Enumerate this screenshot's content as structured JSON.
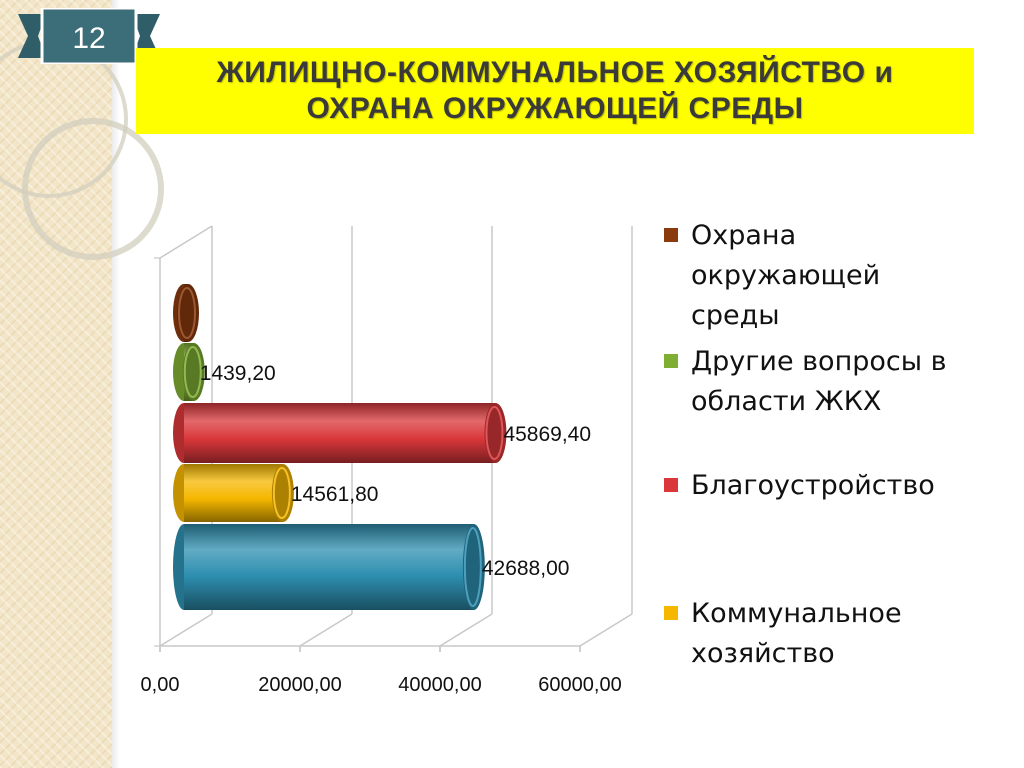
{
  "slide_number": "12",
  "title": {
    "line1": "ЖИЛИЩНО-КОММУНАЛЬНОЕ ХОЗЯЙСТВО и",
    "line2": "ОХРАНА  ОКРУЖАЮЩЕЙ  СРЕДЫ"
  },
  "colors": {
    "title_band": "#ffff00",
    "slide_number_badge": "#3c6e7a"
  },
  "chart_data": {
    "type": "bar",
    "orientation": "horizontal",
    "style": "3d-cylinder",
    "xlim": [
      0,
      60000
    ],
    "x_ticks": [
      "0,00",
      "20000,00",
      "40000,00",
      "60000,00"
    ],
    "x_tick_values": [
      0,
      20000,
      40000,
      60000
    ],
    "grid": true,
    "legend_position": "right",
    "series": [
      {
        "name": "Охрана окружающей среды",
        "value": 300,
        "label": "",
        "color": "#c0504d",
        "base_color": "#8b3a0e"
      },
      {
        "name": "Другие вопросы в области ЖКХ",
        "value": 1439.2,
        "label": "1439,20",
        "color": "#7fae33"
      },
      {
        "name": "Благоустройство",
        "value": 45869.4,
        "label": "45869,40",
        "color": "#d9373a"
      },
      {
        "name": "Коммунальное хозяйство",
        "value": 14561.8,
        "label": "14561,80",
        "color": "#f5b700"
      },
      {
        "name": "",
        "value": 42688.0,
        "label": "42688,00",
        "color": "#2e8fb0"
      }
    ],
    "legend": [
      {
        "label": "Охрана окружающей среды",
        "lines": [
          "Охрана",
          "окружающей",
          "среды"
        ],
        "color": "#8b3a0e"
      },
      {
        "label": "Другие вопросы в области ЖКХ",
        "lines": [
          "Другие вопросы в",
          "области ЖКХ"
        ],
        "color": "#7fae33"
      },
      {
        "label": "Благоустройство",
        "lines": [
          " Благоустройство"
        ],
        "color": "#d9373a"
      },
      {
        "label": "Коммунальное хозяйство",
        "lines": [
          "Коммунальное",
          "хозяйство"
        ],
        "color": "#f5b700"
      }
    ]
  }
}
